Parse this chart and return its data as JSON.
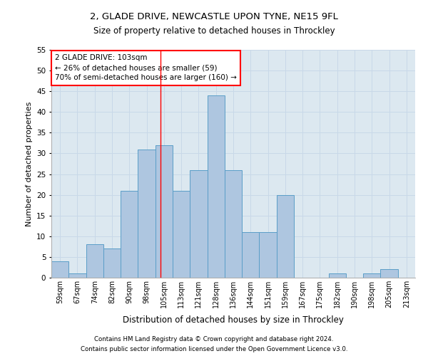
{
  "title1": "2, GLADE DRIVE, NEWCASTLE UPON TYNE, NE15 9FL",
  "title2": "Size of property relative to detached houses in Throckley",
  "xlabel": "Distribution of detached houses by size in Throckley",
  "ylabel": "Number of detached properties",
  "footer1": "Contains HM Land Registry data © Crown copyright and database right 2024.",
  "footer2": "Contains public sector information licensed under the Open Government Licence v3.0.",
  "annotation_line1": "2 GLADE DRIVE: 103sqm",
  "annotation_line2": "← 26% of detached houses are smaller (59)",
  "annotation_line3": "70% of semi-detached houses are larger (160) →",
  "bins": [
    "59sqm",
    "67sqm",
    "74sqm",
    "82sqm",
    "90sqm",
    "98sqm",
    "105sqm",
    "113sqm",
    "121sqm",
    "128sqm",
    "136sqm",
    "144sqm",
    "151sqm",
    "159sqm",
    "167sqm",
    "175sqm",
    "182sqm",
    "190sqm",
    "198sqm",
    "205sqm",
    "213sqm"
  ],
  "values": [
    4,
    1,
    8,
    7,
    21,
    31,
    32,
    21,
    26,
    44,
    26,
    11,
    11,
    20,
    0,
    0,
    1,
    0,
    1,
    2,
    0
  ],
  "bar_color": "#aec6e0",
  "bar_edge_color": "#5a9ec8",
  "grid_color": "#c8d8e8",
  "background_color": "#dce8f0",
  "red_line_x": 5.82,
  "ylim": [
    0,
    55
  ],
  "yticks": [
    0,
    5,
    10,
    15,
    20,
    25,
    30,
    35,
    40,
    45,
    50,
    55
  ]
}
